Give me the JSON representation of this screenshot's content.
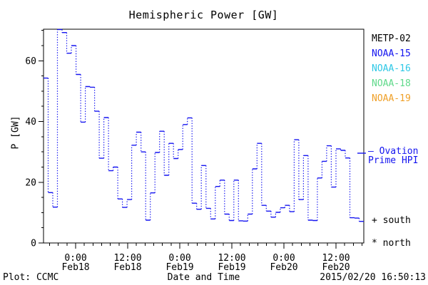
{
  "title": "Hemispheric Power [GW]",
  "satellites": [
    {
      "label": "METP-02",
      "color": "#000000"
    },
    {
      "label": "NOAA-15",
      "color": "#1414F0"
    },
    {
      "label": "NOAA-16",
      "color": "#2EC8E6"
    },
    {
      "label": "NOAA-18",
      "color": "#5FD98A"
    },
    {
      "label": "NOAA-19",
      "color": "#EFA028"
    }
  ],
  "ovation_legend": {
    "line1": "— Ovation",
    "line2": "Prime HPI",
    "color": "#1414F0"
  },
  "markers": {
    "south_symbol": "+",
    "south_label": "south",
    "north_symbol": "*",
    "north_label": "north"
  },
  "footer": {
    "left": "Plot: CCMC",
    "center": "Date and Time",
    "right": "2015/02/20 16:50:13"
  },
  "chart_data": {
    "type": "line",
    "style": "step",
    "title": "Hemispheric Power [GW]",
    "xlabel": "Date and Time",
    "ylabel": "P [GW]",
    "grid": false,
    "legend_position": "right",
    "ylim": [
      0,
      70.4
    ],
    "y_major_ticks": [
      0,
      20,
      40,
      60
    ],
    "y_minor_step": 5,
    "x_start_hours": -7.4,
    "x_end_hours": 66.4,
    "x_hours_origin": "Feb18 00:00",
    "x_minor_step_hours": 2,
    "x_major_ticks": [
      {
        "hours": 0,
        "time": "0:00",
        "date": "Feb18"
      },
      {
        "hours": 12,
        "time": "12:00",
        "date": "Feb18"
      },
      {
        "hours": 24,
        "time": "0:00",
        "date": "Feb19"
      },
      {
        "hours": 36,
        "time": "12:00",
        "date": "Feb19"
      },
      {
        "hours": 48,
        "time": "0:00",
        "date": "Feb20"
      },
      {
        "hours": 60,
        "time": "12:00",
        "date": "Feb20"
      }
    ],
    "series": [
      {
        "name": "Ovation Prime HPI",
        "color": "#1414F0",
        "values": [
          54.3,
          16.6,
          11.8,
          70.3,
          69.3,
          62.5,
          65.0,
          55.5,
          39.8,
          51.5,
          51.3,
          43.4,
          27.9,
          41.3,
          23.8,
          25.0,
          14.5,
          11.7,
          14.3,
          32.2,
          36.5,
          30.0,
          7.5,
          16.5,
          29.8,
          36.8,
          22.3,
          32.8,
          27.8,
          30.8,
          39.0,
          41.2,
          13.1,
          11.1,
          25.5,
          11.4,
          7.9,
          18.6,
          20.7,
          9.5,
          7.4,
          20.7,
          7.3,
          7.2,
          9.5,
          24.4,
          32.8,
          12.4,
          10.5,
          8.5,
          10.1,
          11.6,
          12.4,
          10.3,
          34.0,
          14.3,
          28.8,
          7.5,
          7.4,
          21.4,
          26.9,
          32.0,
          18.4,
          31.0,
          30.5,
          28.0,
          8.3,
          8.2,
          7.1
        ]
      }
    ]
  }
}
